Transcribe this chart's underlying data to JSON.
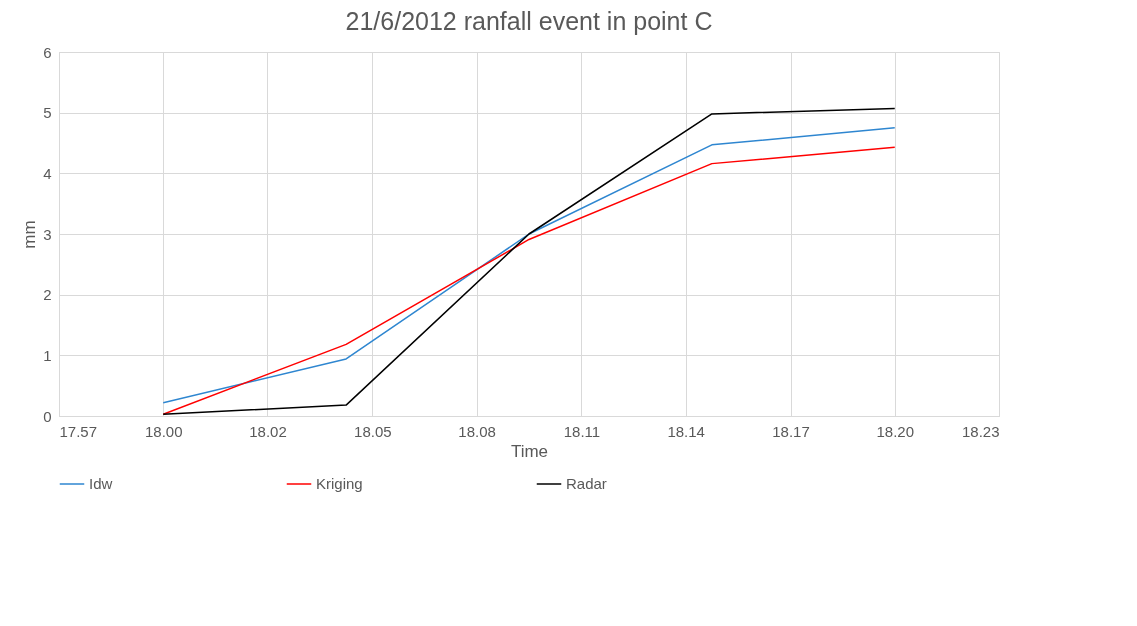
{
  "chart_data": {
    "type": "line",
    "title": "21/6/2012 ranfall event in point C",
    "xlabel": "Time",
    "ylabel": "mm",
    "x": [
      "2012-06-21T18:00",
      "2012-06-21T18:05",
      "2012-06-21T18:10",
      "2012-06-21T18:15",
      "2012-06-21T18:20"
    ],
    "xlim": [
      "2012-06-21T17:57:09",
      "2012-06-21T18:22:51"
    ],
    "xticks": [
      {
        "value": "2012-06-21T17:57:09",
        "label": "17.57"
      },
      {
        "value": "2012-06-21T18:00",
        "label": "18.00"
      },
      {
        "value": "2012-06-21T18:02:51",
        "label": "18.02"
      },
      {
        "value": "2012-06-21T18:05:43",
        "label": "18.05"
      },
      {
        "value": "2012-06-21T18:08:34",
        "label": "18.08"
      },
      {
        "value": "2012-06-21T18:11:26",
        "label": "18.11"
      },
      {
        "value": "2012-06-21T18:14:17",
        "label": "18.14"
      },
      {
        "value": "2012-06-21T18:17:09",
        "label": "18.17"
      },
      {
        "value": "2012-06-21T18:20",
        "label": "18.20"
      },
      {
        "value": "2012-06-21T18:22:51",
        "label": "18.23"
      }
    ],
    "ylim": [
      0,
      6
    ],
    "yticks": [
      0,
      1,
      2,
      3,
      4,
      5,
      6
    ],
    "series": [
      {
        "name": "Idw",
        "color": "#2e86d0",
        "values": [
          0.22,
          0.94,
          3.0,
          4.47,
          4.75
        ]
      },
      {
        "name": "Kriging",
        "color": "#ff0000",
        "values": [
          0.03,
          1.18,
          2.91,
          4.16,
          4.43
        ]
      },
      {
        "name": "Radar",
        "color": "#000000",
        "values": [
          0.03,
          0.18,
          3.0,
          4.98,
          5.07
        ]
      }
    ],
    "grid": true,
    "legend": "bottom",
    "marker": "none",
    "line_style": "solid"
  }
}
